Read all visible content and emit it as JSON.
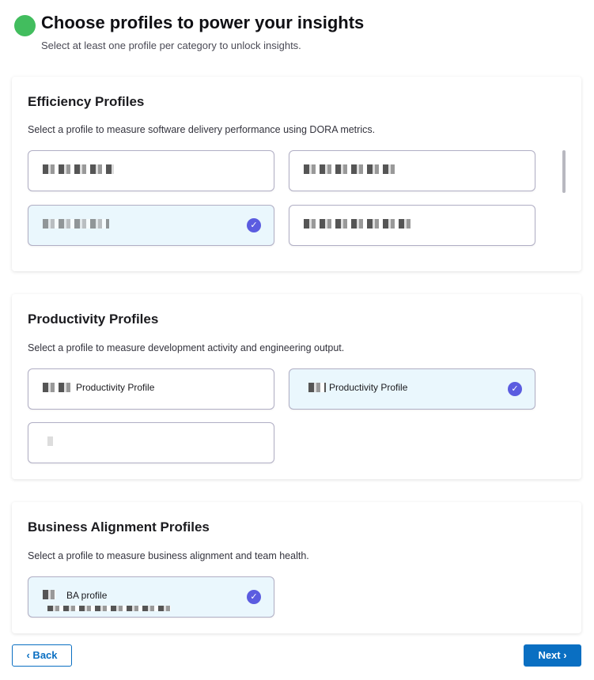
{
  "header": {
    "title": "Choose profiles to power your insights",
    "subtitle": "Select at least one profile per category to unlock insights.",
    "logo_icon": "pinwheel-icon"
  },
  "sections": [
    {
      "title": "Efficiency Profiles",
      "description": "Select a profile to measure software delivery performance using DORA metrics.",
      "profiles": [
        {
          "name": "",
          "selected": false
        },
        {
          "name": "",
          "selected": false
        },
        {
          "name": "",
          "selected": true
        },
        {
          "name": "",
          "selected": false
        }
      ]
    },
    {
      "title": "Productivity Profiles",
      "description": "Select a profile to measure development activity and engineering output.",
      "profiles": [
        {
          "name": "Productivity Profile",
          "selected": false
        },
        {
          "name": "Productivity Profile",
          "selected": true
        },
        {
          "name": "",
          "selected": false
        }
      ]
    },
    {
      "title": "Business Alignment Profiles",
      "description": "Select a profile to measure business alignment and team health.",
      "profiles": [
        {
          "name": "BA profile",
          "selected": true
        }
      ]
    }
  ],
  "footer": {
    "back_label": "‹ Back",
    "next_label": "Next ›"
  },
  "colors": {
    "accent": "#0a6fc2",
    "check": "#5b5ce0",
    "selected_bg": "#eaf7fd"
  }
}
